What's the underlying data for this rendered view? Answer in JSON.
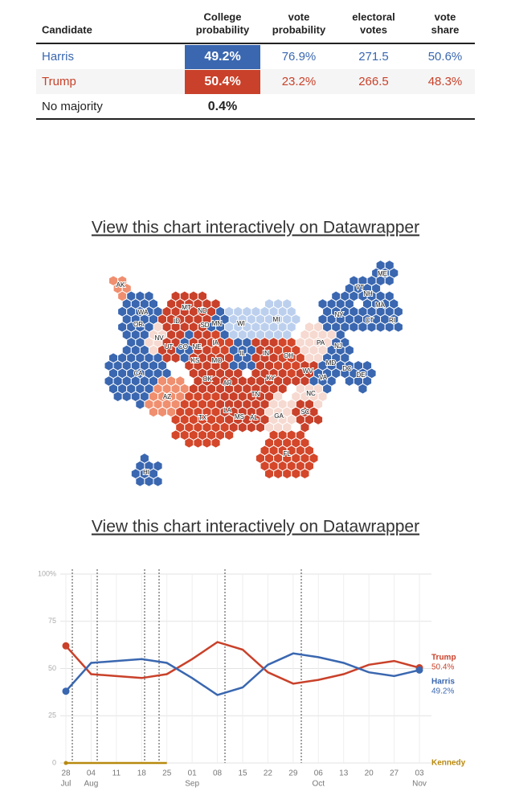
{
  "table": {
    "headers": [
      [
        "Candidate"
      ],
      [
        "College",
        "probability"
      ],
      [
        "vote",
        "probability"
      ],
      [
        "electoral",
        "votes"
      ],
      [
        "vote",
        "share"
      ]
    ],
    "rows": [
      [
        "Harris",
        "49.2%",
        "76.9%",
        "271.5",
        "50.6%"
      ],
      [
        "Trump",
        "50.4%",
        "23.2%",
        "266.5",
        "48.3%"
      ],
      [
        "No majority",
        "0.4%"
      ]
    ],
    "row_colors": [
      "#3a67b0",
      "#c9412a",
      "#222222"
    ]
  },
  "links": [
    "View this chart interactively on Datawrapper",
    "View this chart interactively on Datawrapper"
  ],
  "map": {
    "states": [
      {
        "label": "AK",
        "color": "#f08f6f"
      },
      {
        "label": "HI",
        "color": "#3a67b0"
      },
      {
        "label": "WA",
        "color": "#3a67b0"
      },
      {
        "label": "OR",
        "color": "#3a67b0"
      },
      {
        "label": "CA",
        "color": "#3a67b0"
      },
      {
        "label": "NV",
        "color": "#f6d9d0"
      },
      {
        "label": "ID",
        "color": "#c9412a"
      },
      {
        "label": "MT",
        "color": "#c9412a"
      },
      {
        "label": "UT",
        "color": "#c9412a"
      },
      {
        "label": "CO",
        "color": "#3a67b0"
      },
      {
        "label": "AZ",
        "color": "#f08f6f"
      },
      {
        "label": "ND",
        "color": "#c9412a"
      },
      {
        "label": "SD",
        "color": "#c9412a"
      },
      {
        "label": "NE",
        "color": "#c9412a"
      },
      {
        "label": "KS",
        "color": "#c9412a"
      },
      {
        "label": "OK",
        "color": "#c9412a"
      },
      {
        "label": "TX",
        "color": "#d4472a"
      },
      {
        "label": "MN",
        "color": "#3a67b0"
      },
      {
        "label": "IA",
        "color": "#d4472a"
      },
      {
        "label": "MO",
        "color": "#c9412a"
      },
      {
        "label": "AR",
        "color": "#c9412a"
      },
      {
        "label": "LA",
        "color": "#c9412a"
      },
      {
        "label": "MS",
        "color": "#c9412a"
      },
      {
        "label": "AL",
        "color": "#c9412a"
      },
      {
        "label": "WI",
        "color": "#bcd0ee"
      },
      {
        "label": "IL",
        "color": "#3a67b0"
      },
      {
        "label": "MI",
        "color": "#bcd0ee"
      },
      {
        "label": "IN",
        "color": "#c9412a"
      },
      {
        "label": "OH",
        "color": "#d4472a"
      },
      {
        "label": "KY",
        "color": "#c9412a"
      },
      {
        "label": "TN",
        "color": "#c9412a"
      },
      {
        "label": "GA",
        "color": "#f6d9d0"
      },
      {
        "label": "SC",
        "color": "#c9412a"
      },
      {
        "label": "NC",
        "color": "#f6d9d0"
      },
      {
        "label": "FL",
        "color": "#d4472a"
      },
      {
        "label": "PA",
        "color": "#f6d9d0"
      },
      {
        "label": "WV",
        "color": "#c9412a"
      },
      {
        "label": "VA",
        "color": "#3a67b0"
      },
      {
        "label": "MD",
        "color": "#3a67b0"
      },
      {
        "label": "DC",
        "color": "#3a67b0"
      },
      {
        "label": "DE",
        "color": "#3a67b0"
      },
      {
        "label": "NJ",
        "color": "#3a67b0"
      },
      {
        "label": "NY",
        "color": "#3a67b0"
      },
      {
        "label": "CT",
        "color": "#3a67b0"
      },
      {
        "label": "RI",
        "color": "#3a67b0"
      },
      {
        "label": "MA",
        "color": "#3a67b0"
      },
      {
        "label": "VT",
        "color": "#3a67b0"
      },
      {
        "label": "NH",
        "color": "#3a67b0"
      },
      {
        "label": "ME",
        "color": "#3a67b0"
      }
    ]
  },
  "chart_data": {
    "type": "line",
    "categories": [
      "28",
      "04",
      "11",
      "18",
      "25",
      "01",
      "08",
      "15",
      "22",
      "29",
      "06",
      "13",
      "20",
      "27",
      "03"
    ],
    "month_labels": [
      "Jul",
      "Aug",
      null,
      null,
      null,
      "Sep",
      null,
      null,
      null,
      null,
      "Oct",
      null,
      null,
      null,
      "Nov"
    ],
    "series": [
      {
        "name": "Trump",
        "color": "#c9412a",
        "values": [
          62,
          47,
          46,
          45,
          47,
          55,
          64,
          60,
          48,
          42,
          44,
          47,
          52,
          54,
          50.4
        ],
        "value_labels": [
          null,
          null,
          null,
          null,
          null,
          null,
          null,
          null,
          null,
          null,
          null,
          null,
          null,
          null,
          "50.4%"
        ]
      },
      {
        "name": "Harris",
        "color": "#3a67b0",
        "values": [
          38,
          53,
          54,
          55,
          53,
          45,
          36,
          40,
          52,
          58,
          56,
          53,
          48,
          46,
          49.2
        ],
        "value_labels": [
          null,
          null,
          null,
          null,
          null,
          null,
          null,
          null,
          null,
          null,
          null,
          null,
          null,
          null,
          "49.2%"
        ]
      },
      {
        "name": "Kennedy",
        "color": "#b8890f",
        "values": [
          0,
          0,
          0,
          0,
          0,
          null,
          null,
          null,
          null,
          null,
          null,
          null,
          null,
          null,
          null
        ]
      }
    ],
    "ylim": [
      0,
      100
    ],
    "yticks": [
      0,
      25,
      50,
      75,
      {
        "value": 100,
        "label": "100%"
      }
    ],
    "grid": true
  }
}
